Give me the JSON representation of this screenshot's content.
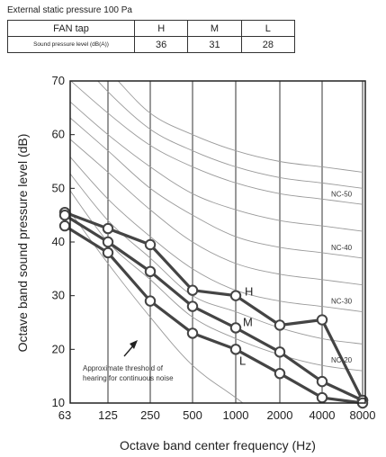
{
  "header": {
    "caption": "External static pressure 100 Pa",
    "table": {
      "row1_label": "FAN tap",
      "row2_label": "Sound pressure level (dB(A))",
      "taps": [
        "H",
        "M",
        "L"
      ],
      "levels": [
        "36",
        "31",
        "28"
      ]
    }
  },
  "chart_data": {
    "type": "line",
    "xlabel": "Octave band center frequency (Hz)",
    "ylabel": "Octave band  sound pressure level (dB)",
    "categories": [
      "63",
      "125",
      "250",
      "500",
      "1000",
      "2000",
      "4000",
      "8000"
    ],
    "y_ticks": [
      "10",
      "20",
      "30",
      "40",
      "50",
      "60",
      "70"
    ],
    "ylim": [
      10,
      70
    ],
    "grid": "vertical lines at each octave band",
    "series": [
      {
        "name": "H",
        "values": [
          45.5,
          42.5,
          39.5,
          31,
          30,
          24.5,
          25.5,
          10.5
        ]
      },
      {
        "name": "M",
        "values": [
          45,
          40,
          34.5,
          28,
          24,
          19.5,
          14,
          10.5
        ]
      },
      {
        "name": "L",
        "values": [
          43,
          38,
          29,
          23,
          20,
          15.5,
          11,
          10
        ]
      }
    ],
    "nc_curves": [
      {
        "name": "NC-50",
        "values": [
          71,
          64,
          58,
          54,
          51,
          49,
          48,
          47
        ]
      },
      {
        "name": "NC-40",
        "values": [
          64,
          57,
          50,
          45,
          41,
          39,
          38,
          37
        ]
      },
      {
        "name": "NC-30",
        "values": [
          57,
          48,
          41,
          35,
          31,
          29,
          28,
          27
        ]
      },
      {
        "name": "NC-20",
        "values": [
          51,
          40,
          33,
          26,
          22,
          19,
          17,
          16
        ]
      }
    ],
    "extra_curves": [
      [
        80,
        72,
        64,
        60,
        57,
        55,
        54,
        53
      ],
      [
        77,
        68,
        61,
        57,
        54,
        52,
        51,
        50
      ],
      [
        67,
        60,
        54,
        49,
        46,
        44,
        43,
        42
      ],
      [
        60,
        53,
        46,
        40,
        36,
        34,
        33,
        32
      ],
      [
        54,
        44,
        37,
        30,
        27,
        24,
        22,
        21
      ]
    ],
    "threshold_curve": [
      47,
      36,
      26,
      17,
      11,
      5,
      2,
      0
    ],
    "annotation": "Approximate threshold of\nhearing for continuous noise",
    "colors": {
      "series": "#444444",
      "marker_fill": "#ffffff",
      "nc": "#9a9a9a",
      "axis": "#222222"
    }
  }
}
